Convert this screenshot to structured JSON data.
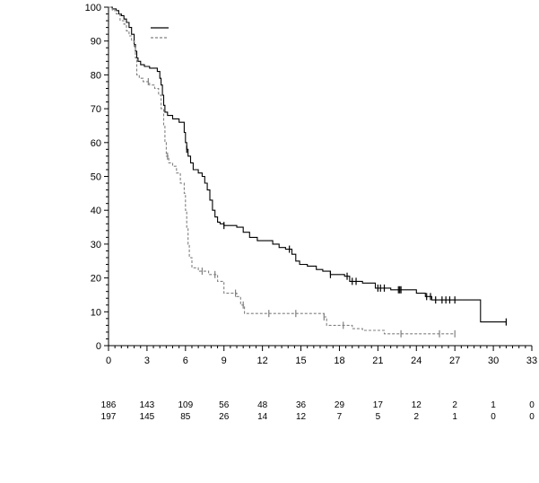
{
  "chart_data": {
    "type": "line",
    "subtype": "kaplan-meier",
    "title": "",
    "xlabel": "",
    "ylabel": "",
    "xlim": [
      0,
      33
    ],
    "ylim": [
      0,
      100
    ],
    "x_ticks": [
      0,
      3,
      6,
      9,
      12,
      15,
      18,
      21,
      24,
      27,
      30,
      33
    ],
    "y_ticks": [
      0,
      10,
      20,
      30,
      40,
      50,
      60,
      70,
      80,
      90,
      100
    ],
    "grid": false,
    "legend": {
      "placement": "top-left",
      "labels_visible": false
    },
    "series": [
      {
        "style": "solid",
        "color": "#000000",
        "steps": [
          [
            0,
            100
          ],
          [
            0.3,
            99.5
          ],
          [
            0.6,
            99
          ],
          [
            0.8,
            98
          ],
          [
            1.0,
            97.5
          ],
          [
            1.2,
            96.5
          ],
          [
            1.4,
            95.5
          ],
          [
            1.6,
            94
          ],
          [
            1.8,
            92
          ],
          [
            2.0,
            89
          ],
          [
            2.1,
            87
          ],
          [
            2.2,
            85
          ],
          [
            2.3,
            84
          ],
          [
            2.5,
            83
          ],
          [
            2.8,
            82.5
          ],
          [
            3.2,
            82
          ],
          [
            3.8,
            81
          ],
          [
            4.0,
            79
          ],
          [
            4.1,
            77
          ],
          [
            4.2,
            74
          ],
          [
            4.3,
            71
          ],
          [
            4.4,
            69
          ],
          [
            4.6,
            68
          ],
          [
            5.0,
            67
          ],
          [
            5.5,
            66
          ],
          [
            5.9,
            63
          ],
          [
            6.0,
            60
          ],
          [
            6.1,
            58
          ],
          [
            6.2,
            56
          ],
          [
            6.4,
            54
          ],
          [
            6.6,
            52
          ],
          [
            7.0,
            51
          ],
          [
            7.3,
            50
          ],
          [
            7.5,
            48
          ],
          [
            7.7,
            46
          ],
          [
            7.9,
            43
          ],
          [
            8.1,
            40
          ],
          [
            8.3,
            38
          ],
          [
            8.5,
            36.5
          ],
          [
            8.7,
            36
          ],
          [
            9.0,
            35.5
          ],
          [
            10.0,
            35
          ],
          [
            10.5,
            33.5
          ],
          [
            11.0,
            32
          ],
          [
            11.6,
            31
          ],
          [
            12.8,
            30
          ],
          [
            13.3,
            29
          ],
          [
            13.8,
            28.5
          ],
          [
            14.3,
            27
          ],
          [
            14.6,
            25
          ],
          [
            14.9,
            24
          ],
          [
            15.5,
            23.5
          ],
          [
            16.2,
            22.5
          ],
          [
            16.7,
            22
          ],
          [
            17.3,
            21
          ],
          [
            18.4,
            20.5
          ],
          [
            18.8,
            19
          ],
          [
            19.8,
            18.5
          ],
          [
            20.8,
            17
          ],
          [
            22.0,
            16.5
          ],
          [
            24.0,
            15.5
          ],
          [
            24.7,
            14.5
          ],
          [
            25.2,
            13.5
          ],
          [
            27.0,
            13.5
          ],
          [
            29.0,
            7
          ],
          [
            31.0,
            7
          ]
        ],
        "censors": [
          6.1,
          9.0,
          14.1,
          17.3,
          18.6,
          19.0,
          19.3,
          21.0,
          21.2,
          21.5,
          22.6,
          22.7,
          22.8,
          24.8,
          25.1,
          25.5,
          26.0,
          26.3,
          26.6,
          27.0,
          31.0
        ]
      },
      {
        "style": "dashed",
        "color": "#808080",
        "steps": [
          [
            0,
            100
          ],
          [
            0.3,
            99
          ],
          [
            0.6,
            98
          ],
          [
            0.9,
            96
          ],
          [
            1.2,
            95
          ],
          [
            1.4,
            93
          ],
          [
            1.6,
            91.5
          ],
          [
            1.8,
            90
          ],
          [
            2.0,
            88
          ],
          [
            2.1,
            85
          ],
          [
            2.2,
            80
          ],
          [
            2.4,
            79
          ],
          [
            2.7,
            78
          ],
          [
            3.2,
            77
          ],
          [
            3.6,
            76
          ],
          [
            3.9,
            74
          ],
          [
            4.1,
            70
          ],
          [
            4.3,
            65
          ],
          [
            4.4,
            60
          ],
          [
            4.5,
            56
          ],
          [
            4.7,
            54
          ],
          [
            5.0,
            53
          ],
          [
            5.3,
            51
          ],
          [
            5.6,
            48
          ],
          [
            5.9,
            45
          ],
          [
            6.0,
            40
          ],
          [
            6.1,
            35
          ],
          [
            6.2,
            30
          ],
          [
            6.3,
            26
          ],
          [
            6.5,
            23
          ],
          [
            7.0,
            22
          ],
          [
            7.8,
            21
          ],
          [
            8.5,
            19
          ],
          [
            9.0,
            15.5
          ],
          [
            10.0,
            14.5
          ],
          [
            10.3,
            12
          ],
          [
            10.6,
            9.5
          ],
          [
            16.8,
            8.5
          ],
          [
            17.0,
            6
          ],
          [
            19.0,
            5
          ],
          [
            19.8,
            4.5
          ],
          [
            21.5,
            3.5
          ],
          [
            27.0,
            3.5
          ]
        ],
        "censors": [
          3.1,
          4.6,
          7.3,
          8.3,
          9.9,
          10.5,
          12.5,
          14.6,
          16.8,
          18.3,
          22.8,
          25.8,
          27.0
        ]
      }
    ],
    "risk_table": {
      "time_points": [
        0,
        3,
        6,
        9,
        12,
        15,
        18,
        21,
        24,
        27,
        30,
        33
      ],
      "rows": [
        {
          "values": [
            "186",
            "143",
            "109",
            "56",
            "48",
            "36",
            "29",
            "17",
            "12",
            "2",
            "1",
            "0"
          ]
        },
        {
          "values": [
            "197",
            "145",
            "85",
            "26",
            "14",
            "12",
            "7",
            "5",
            "2",
            "1",
            "0",
            "0"
          ]
        }
      ]
    }
  }
}
